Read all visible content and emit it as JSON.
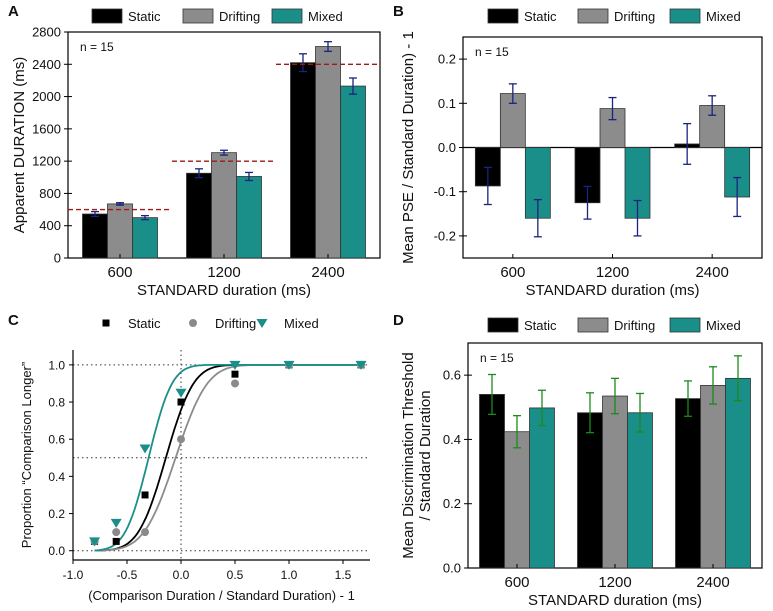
{
  "legend_labels": [
    "Static",
    "Drifting",
    "Mixed"
  ],
  "colors": {
    "static": "#000000",
    "drifting": "#8c8c8c",
    "mixed": "#1a8f8a",
    "error": "#1a237e",
    "error_green": "#1c8a1c",
    "reference": "#a01818",
    "frame": "#000000"
  },
  "chart_data": [
    {
      "panel": "A",
      "type": "bar",
      "title": "",
      "annotation": "n = 15",
      "xlabel": "STANDARD duration (ms)",
      "ylabel": "Apparent DURATION (ms)",
      "categories": [
        "600",
        "1200",
        "2400"
      ],
      "ylim": [
        0,
        2800
      ],
      "yticks": [
        0,
        400,
        800,
        1200,
        1600,
        2000,
        2400,
        2800
      ],
      "series": [
        {
          "name": "Static",
          "values": [
            545,
            1050,
            2420
          ],
          "errors": [
            30,
            55,
            110
          ]
        },
        {
          "name": "Drifting",
          "values": [
            670,
            1305,
            2620
          ],
          "errors": [
            15,
            30,
            60
          ]
        },
        {
          "name": "Mixed",
          "values": [
            500,
            1010,
            2130
          ],
          "errors": [
            25,
            50,
            100
          ]
        }
      ],
      "reference_lines": [
        600,
        1200,
        2400
      ]
    },
    {
      "panel": "B",
      "type": "bar",
      "title": "",
      "annotation": "n = 15",
      "xlabel": "STANDARD duration (ms)",
      "ylabel": "Mean PSE / Standard Duration) - 1",
      "categories": [
        "600",
        "1200",
        "2400"
      ],
      "ylim": [
        -0.25,
        0.25
      ],
      "yticks": [
        -0.2,
        -0.1,
        0.0,
        0.1,
        0.2
      ],
      "ytick_labels": [
        "-0.2",
        "-0.1",
        "0.0",
        "0.1",
        "0.2"
      ],
      "series": [
        {
          "name": "Static",
          "values": [
            -0.087,
            -0.125,
            0.008
          ],
          "errors": [
            0.042,
            0.037,
            0.046
          ]
        },
        {
          "name": "Drifting",
          "values": [
            0.122,
            0.088,
            0.095
          ],
          "errors": [
            0.022,
            0.025,
            0.022
          ]
        },
        {
          "name": "Mixed",
          "values": [
            -0.16,
            -0.16,
            -0.112
          ],
          "errors": [
            0.042,
            0.04,
            0.044
          ]
        }
      ]
    },
    {
      "panel": "C",
      "type": "scatter",
      "title": "",
      "xlabel": "(Comparison Duration / Standard Duration) - 1",
      "ylabel": "Proportion “Comparison Longer”",
      "xlim": [
        -1.0,
        1.75
      ],
      "ylim": [
        -0.05,
        1.08
      ],
      "xticks": [
        -1.0,
        -0.5,
        0.0,
        0.5,
        1.0,
        1.5
      ],
      "xtick_labels": [
        "-1.0",
        "-0.5",
        "0.0",
        "0.5",
        "1.0",
        "1.5"
      ],
      "yticks": [
        0.0,
        0.2,
        0.4,
        0.6,
        0.8,
        1.0
      ],
      "ytick_labels": [
        "0.0",
        "0.2",
        "0.4",
        "0.6",
        "0.8",
        "1.0"
      ],
      "series": [
        {
          "name": "Static",
          "marker": "square",
          "x": [
            -0.8,
            -0.6,
            -0.333,
            0.0,
            0.5,
            1.0,
            1.667
          ],
          "y": [
            0.05,
            0.05,
            0.3,
            0.8,
            0.95,
            1.0,
            1.0
          ],
          "fit": {
            "mu": -0.14,
            "sigma": 0.2
          }
        },
        {
          "name": "Drifting",
          "marker": "circle",
          "x": [
            -0.8,
            -0.6,
            -0.333,
            0.0,
            0.5,
            1.0,
            1.667
          ],
          "y": [
            0.05,
            0.1,
            0.1,
            0.6,
            0.9,
            1.0,
            1.0
          ],
          "fit": {
            "mu": -0.05,
            "sigma": 0.23
          }
        },
        {
          "name": "Mixed",
          "marker": "triangle-down",
          "x": [
            -0.8,
            -0.6,
            -0.333,
            0.0,
            0.5,
            1.0,
            1.667
          ],
          "y": [
            0.05,
            0.15,
            0.55,
            0.85,
            1.0,
            1.0,
            1.0
          ],
          "fit": {
            "mu": -0.3,
            "sigma": 0.17
          }
        }
      ],
      "reference_lines": {
        "x": [
          0.0
        ],
        "y": [
          0.0,
          0.5,
          1.0
        ]
      }
    },
    {
      "panel": "D",
      "type": "bar",
      "title": "",
      "annotation": "n = 15",
      "xlabel": "STANDARD duration (ms)",
      "ylabel": "Mean Discrimination Threshold / Standard Duration",
      "ylabel_lines": [
        "Mean Discrimination Threshold",
        "/ Standard Duration"
      ],
      "categories": [
        "600",
        "1200",
        "2400"
      ],
      "ylim": [
        0,
        0.7
      ],
      "yticks": [
        0.0,
        0.2,
        0.4,
        0.6
      ],
      "ytick_labels": [
        "0.0",
        "0.2",
        "0.4",
        "0.6"
      ],
      "series": [
        {
          "name": "Static",
          "values": [
            0.54,
            0.483,
            0.527
          ],
          "errors": [
            0.062,
            0.062,
            0.055
          ]
        },
        {
          "name": "Drifting",
          "values": [
            0.424,
            0.535,
            0.568
          ],
          "errors": [
            0.05,
            0.055,
            0.058
          ]
        },
        {
          "name": "Mixed",
          "values": [
            0.498,
            0.483,
            0.59
          ],
          "errors": [
            0.055,
            0.06,
            0.07
          ]
        }
      ]
    }
  ]
}
